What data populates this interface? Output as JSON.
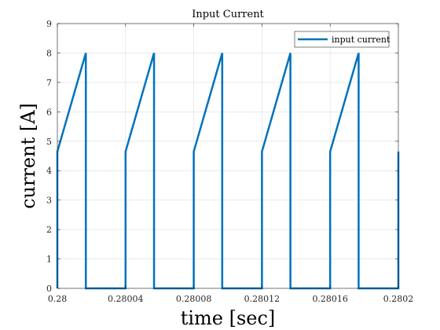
{
  "chart_data": {
    "type": "line",
    "title": "Input Current",
    "xlabel": "time [sec]",
    "ylabel": "current [A]",
    "xlim": [
      0.28,
      0.2802
    ],
    "ylim": [
      0,
      9
    ],
    "xticks": [
      0.28,
      0.28004,
      0.28008,
      0.28012,
      0.28016,
      0.2802
    ],
    "xtick_labels": [
      "0.28",
      "0.28004",
      "0.28008",
      "0.28012",
      "0.28016",
      "0.2802"
    ],
    "yticks": [
      0,
      1,
      2,
      3,
      4,
      5,
      6,
      7,
      8,
      9
    ],
    "ytick_labels": [
      "0",
      "1",
      "2",
      "3",
      "4",
      "5",
      "6",
      "7",
      "8",
      "9"
    ],
    "grid": true,
    "legend": {
      "position": "top-right"
    },
    "series": [
      {
        "name": "input current",
        "color": "#0072BD",
        "x": [
          0.28,
          0.28,
          0.2800167,
          0.2800167,
          0.28004,
          0.28004,
          0.2800567,
          0.2800567,
          0.28008,
          0.28008,
          0.2800967,
          0.2800967,
          0.28012,
          0.28012,
          0.2801367,
          0.2801367,
          0.28016,
          0.28016,
          0.2801767,
          0.2801767,
          0.2802,
          0.2802
        ],
        "y": [
          0,
          4.65,
          8,
          0,
          0,
          4.65,
          8,
          0,
          0,
          4.65,
          8,
          0,
          0,
          4.65,
          8,
          0,
          0,
          4.65,
          8,
          0,
          0,
          4.65
        ]
      }
    ]
  }
}
